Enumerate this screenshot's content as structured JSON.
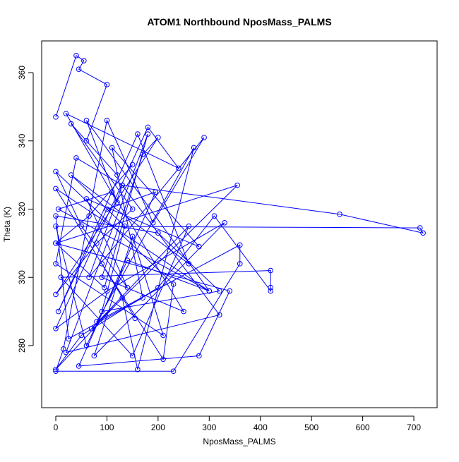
{
  "chart_data": {
    "type": "line",
    "title": "ATOM1 Northbound NposMass_PALMS",
    "xlabel": "NposMass_PALMS",
    "ylabel": "Theta (K)",
    "color": "#0000ff",
    "markers": true,
    "grid": false,
    "xlim": [
      -27.6,
      745.5
    ],
    "ylim": [
      261.8,
      369.3
    ],
    "xticks": [
      0,
      100,
      200,
      300,
      400,
      500,
      600,
      700
    ],
    "yticks": [
      280,
      300,
      320,
      340,
      360
    ],
    "x": [
      0,
      40,
      55,
      45,
      100,
      60,
      120,
      30,
      150,
      80,
      0,
      200,
      170,
      90,
      250,
      110,
      5,
      300,
      140,
      60,
      0,
      712,
      718,
      555,
      130,
      320,
      20,
      180,
      95,
      0,
      355,
      70,
      260,
      150,
      10,
      420,
      420,
      420,
      310,
      200,
      50,
      0,
      130,
      160,
      270,
      80,
      360,
      360,
      230,
      0,
      15,
      100,
      190,
      290,
      65,
      130,
      40,
      0,
      210,
      150,
      75,
      330,
      100,
      0,
      180,
      240,
      20,
      120,
      60,
      300,
      0,
      155,
      90,
      210,
      230,
      0,
      50,
      140,
      60,
      280,
      110,
      170,
      25,
      0,
      200,
      320,
      90,
      135,
      30,
      260,
      160,
      5,
      100,
      195,
      45,
      280,
      340,
      0,
      65,
      150
    ],
    "values": [
      347,
      365,
      363.5,
      361,
      356.5,
      340,
      330,
      345,
      320,
      310,
      295,
      341,
      336,
      300,
      290,
      325,
      320,
      296,
      305,
      280,
      315,
      314.5,
      313,
      318.5,
      327,
      289,
      278,
      342,
      297,
      310,
      327,
      285,
      315,
      277,
      300,
      302,
      297,
      296,
      318,
      297,
      283,
      273,
      294,
      273,
      338,
      287,
      309.5,
      304,
      272.5,
      272.5,
      279,
      346,
      316,
      341,
      300,
      327,
      335,
      304,
      283,
      312,
      277,
      316,
      296,
      285,
      344,
      332,
      348,
      322,
      346,
      296,
      326,
      288,
      304,
      276,
      298,
      331,
      315,
      297,
      323,
      309,
      338,
      294,
      282,
      318,
      313,
      296,
      290,
      315,
      330,
      304,
      342,
      290,
      320,
      325,
      274,
      277,
      296,
      310,
      318,
      333
    ]
  }
}
